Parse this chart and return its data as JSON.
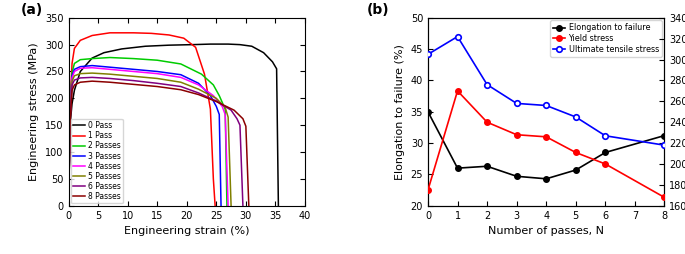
{
  "panel_a": {
    "curves": [
      {
        "label": "0 Pass",
        "color": "black",
        "strain": [
          0,
          0.3,
          0.6,
          1.0,
          2.0,
          4.0,
          6.0,
          9.0,
          13.0,
          17.0,
          21.0,
          24.0,
          27.0,
          29.0,
          31.0,
          33.0,
          34.5,
          35.2,
          35.5
        ],
        "stress": [
          0,
          155,
          190,
          215,
          250,
          275,
          285,
          292,
          297,
          299,
          300,
          301,
          301,
          300,
          297,
          285,
          268,
          255,
          0
        ]
      },
      {
        "label": "1 Pass",
        "color": "red",
        "strain": [
          0,
          0.3,
          0.6,
          1.0,
          2.0,
          4.0,
          7.0,
          11.0,
          14.0,
          17.0,
          19.5,
          21.5,
          23.0,
          24.0,
          24.5,
          24.8
        ],
        "stress": [
          0,
          195,
          265,
          293,
          308,
          317,
          322,
          322,
          321,
          318,
          312,
          295,
          245,
          180,
          50,
          0
        ]
      },
      {
        "label": "2 Passes",
        "color": "#00CC00",
        "strain": [
          0,
          0.3,
          0.6,
          1.0,
          2.0,
          4.0,
          7.0,
          11.0,
          15.0,
          19.0,
          22.5,
          24.5,
          25.5,
          26.5,
          26.8
        ],
        "stress": [
          0,
          185,
          248,
          265,
          272,
          274,
          276,
          274,
          271,
          264,
          245,
          225,
          205,
          180,
          0
        ]
      },
      {
        "label": "3 Passes",
        "color": "blue",
        "strain": [
          0,
          0.3,
          0.6,
          1.0,
          2.0,
          4.0,
          7.0,
          11.0,
          15.0,
          19.0,
          22.0,
          24.0,
          25.0,
          25.5,
          25.8
        ],
        "stress": [
          0,
          178,
          242,
          254,
          259,
          261,
          258,
          254,
          250,
          244,
          228,
          205,
          185,
          170,
          0
        ]
      },
      {
        "label": "4 Passes",
        "color": "magenta",
        "strain": [
          0,
          0.3,
          0.6,
          1.0,
          2.0,
          4.0,
          7.0,
          11.0,
          15.0,
          19.0,
          22.0,
          24.5,
          26.0,
          26.5,
          27.0
        ],
        "stress": [
          0,
          173,
          238,
          250,
          256,
          257,
          254,
          250,
          246,
          239,
          225,
          205,
          185,
          170,
          0
        ]
      },
      {
        "label": "5 Passes",
        "color": "#808000",
        "strain": [
          0,
          0.3,
          0.6,
          1.0,
          2.0,
          4.0,
          7.0,
          11.0,
          15.0,
          19.0,
          22.0,
          25.0,
          26.5,
          27.0,
          27.5
        ],
        "stress": [
          0,
          168,
          232,
          242,
          246,
          247,
          245,
          241,
          237,
          230,
          217,
          200,
          183,
          165,
          0
        ]
      },
      {
        "label": "6 Passes",
        "color": "purple",
        "strain": [
          0,
          0.3,
          0.6,
          1.0,
          2.0,
          4.0,
          7.0,
          11.0,
          15.0,
          19.0,
          22.0,
          25.0,
          27.5,
          28.5,
          29.0,
          29.5
        ],
        "stress": [
          0,
          163,
          225,
          234,
          238,
          239,
          237,
          233,
          228,
          222,
          210,
          195,
          178,
          162,
          150,
          0
        ]
      },
      {
        "label": "8 Passes",
        "color": "#8B0000",
        "strain": [
          0,
          0.3,
          0.6,
          1.0,
          2.0,
          4.0,
          7.0,
          11.0,
          15.0,
          19.0,
          22.0,
          25.0,
          28.0,
          29.5,
          30.0,
          30.5
        ],
        "stress": [
          0,
          160,
          215,
          225,
          230,
          232,
          230,
          226,
          222,
          216,
          207,
          194,
          178,
          162,
          148,
          0
        ]
      }
    ],
    "xlabel": "Engineering strain (%)",
    "ylabel": "Engineering stress (MPa)",
    "xlim": [
      0,
      40
    ],
    "ylim": [
      0,
      350
    ],
    "xticks": [
      0,
      5,
      10,
      15,
      20,
      25,
      30,
      35,
      40
    ],
    "yticks": [
      0,
      50,
      100,
      150,
      200,
      250,
      300,
      350
    ]
  },
  "panel_b": {
    "elongation": {
      "label": "Elongation to failure",
      "color": "black",
      "x": [
        0,
        1,
        2,
        3,
        4,
        5,
        6,
        8
      ],
      "y": [
        35.0,
        26.0,
        26.3,
        24.7,
        24.3,
        25.7,
        28.5,
        31.2
      ]
    },
    "yield_stress": {
      "label": "Yield stress",
      "color": "red",
      "x": [
        0,
        1,
        2,
        3,
        4,
        5,
        6,
        8
      ],
      "y_mpa": [
        175,
        270,
        240,
        228,
        226,
        211,
        200,
        168
      ]
    },
    "uts": {
      "label": "Ultimate tensile stress",
      "color": "blue",
      "x": [
        0,
        1,
        2,
        3,
        4,
        5,
        6,
        8
      ],
      "y_mpa": [
        305,
        322,
        276,
        258,
        256,
        245,
        227,
        218
      ]
    },
    "xlabel": "Number of passes, N",
    "ylabel_left": "Elongation to failure (%)",
    "ylabel_right": "True stress (MPa)",
    "xlim": [
      0,
      8
    ],
    "ylim_left": [
      20,
      50
    ],
    "ylim_right": [
      160,
      340
    ],
    "xticks": [
      0,
      1,
      2,
      3,
      4,
      5,
      6,
      7,
      8
    ],
    "yticks_left": [
      20,
      25,
      30,
      35,
      40,
      45,
      50
    ],
    "yticks_right": [
      160,
      180,
      200,
      220,
      240,
      260,
      280,
      300,
      320,
      340
    ]
  }
}
